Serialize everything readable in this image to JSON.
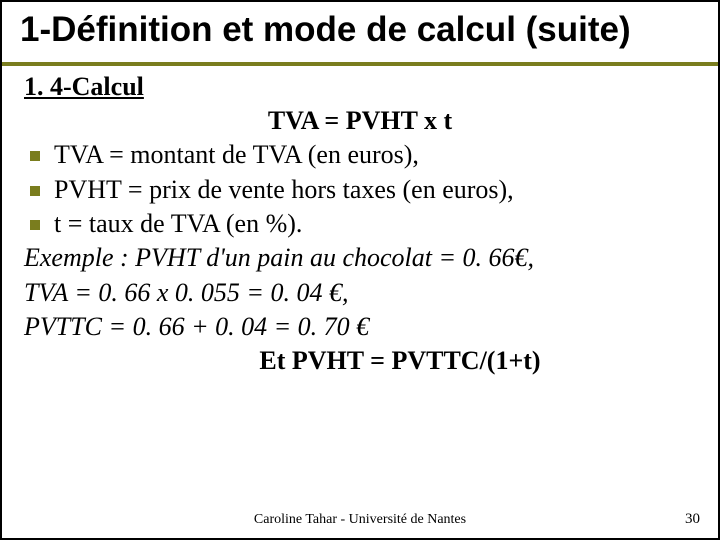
{
  "title": "1-Définition et mode de calcul (suite)",
  "subheading": "1. 4-Calcul",
  "formula_main": "TVA = PVHT x t",
  "bullets": [
    "TVA = montant de TVA (en euros),",
    "PVHT = prix de vente hors taxes (en euros),",
    "t = taux de TVA (en %)."
  ],
  "example_lines": [
    "Exemple : PVHT d'un pain au chocolat = 0. 66€,",
    "TVA = 0. 66 x 0. 055 = 0. 04 €,",
    "PVTTC = 0. 66 + 0. 04 = 0. 70 €"
  ],
  "formula_secondary": "Et PVHT = PVTTC/(1+t)",
  "footer": "Caroline Tahar - Université de Nantes",
  "page_number": "30",
  "colors": {
    "accent": "#7a7d1e",
    "text": "#000000",
    "background": "#ffffff"
  },
  "font_sizes": {
    "title": 35,
    "body": 26,
    "footer": 14
  }
}
